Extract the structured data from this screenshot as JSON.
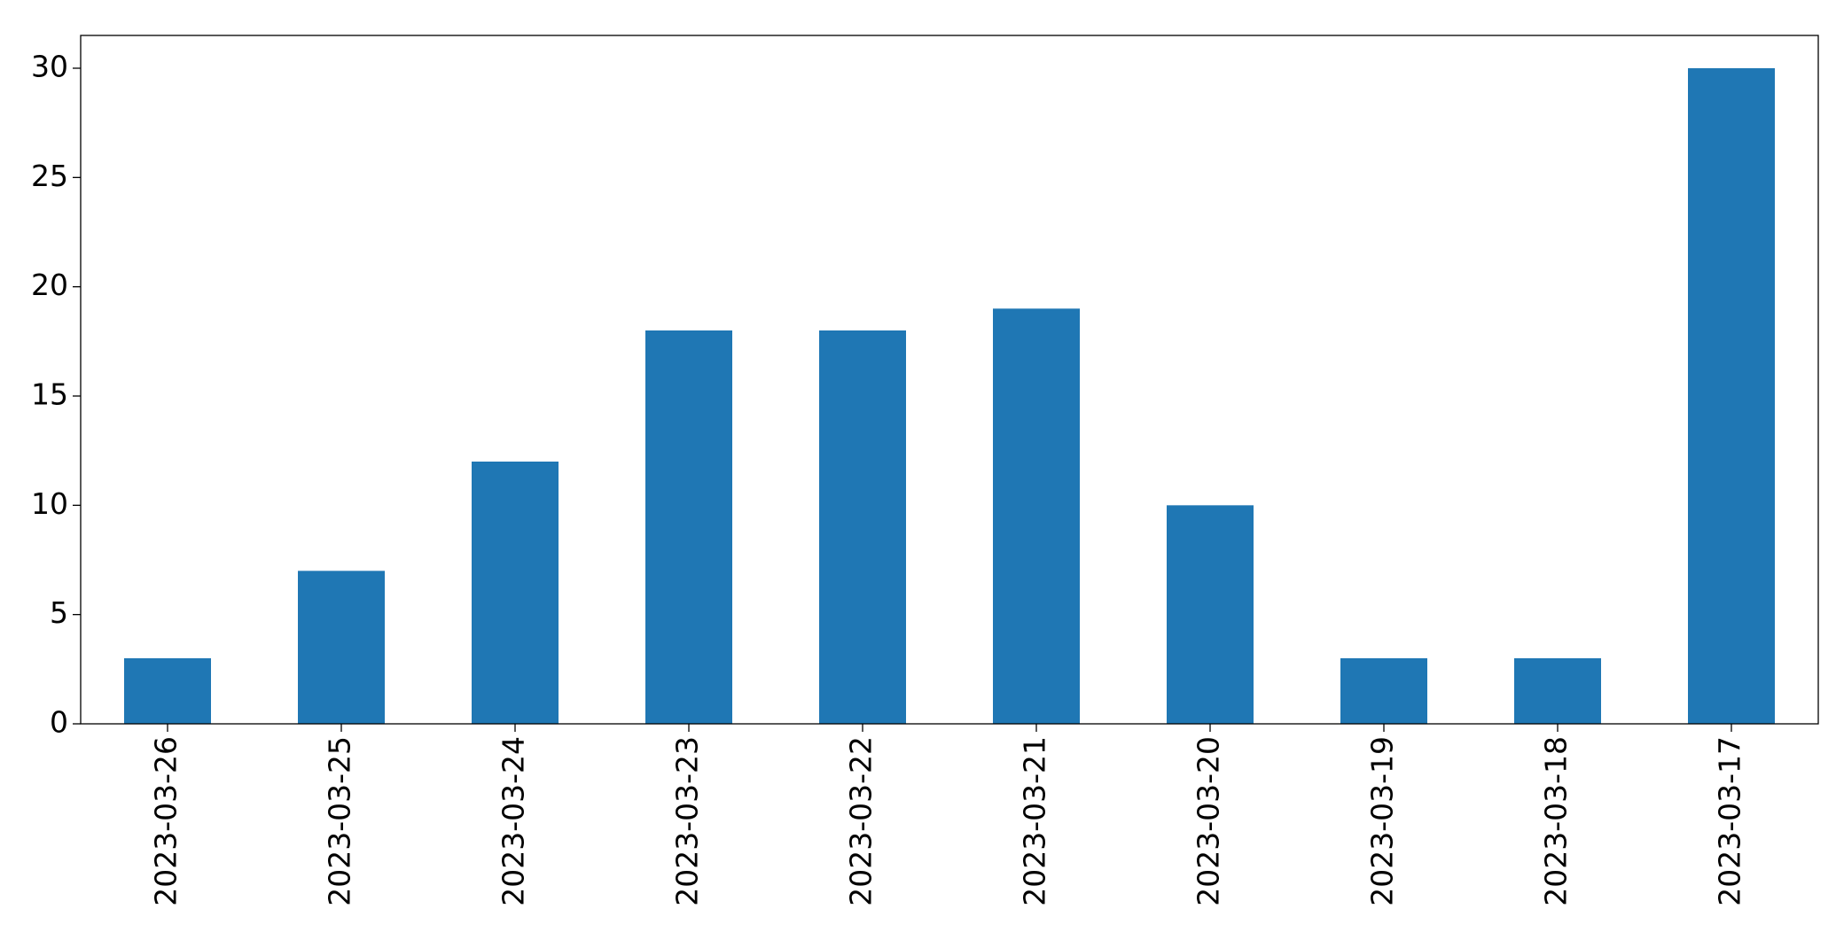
{
  "chart_data": {
    "type": "bar",
    "categories": [
      "2023-03-26",
      "2023-03-25",
      "2023-03-24",
      "2023-03-23",
      "2023-03-22",
      "2023-03-21",
      "2023-03-20",
      "2023-03-19",
      "2023-03-18",
      "2023-03-17"
    ],
    "values": [
      3,
      7,
      12,
      18,
      18,
      19,
      10,
      3,
      3,
      30
    ],
    "color": "#1f77b4",
    "ylim": [
      0,
      31.5
    ],
    "yticks": [
      0,
      5,
      10,
      15,
      20,
      25,
      30
    ],
    "grid": false
  }
}
